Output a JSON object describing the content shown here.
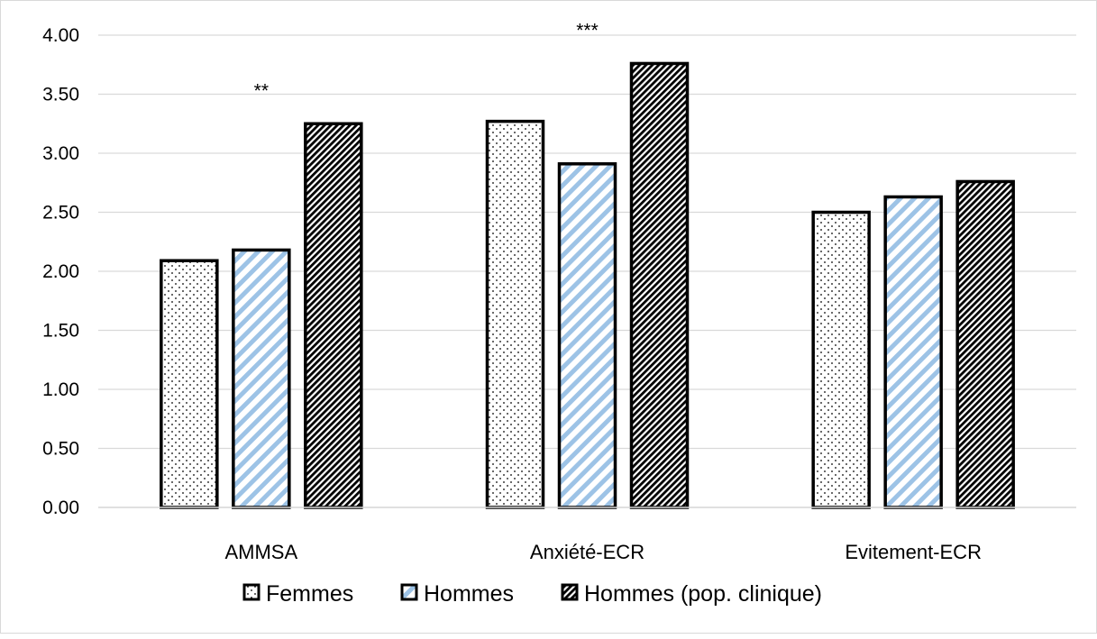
{
  "chart_data": {
    "type": "bar",
    "categories": [
      "AMMSA",
      "Anxiété-ECR",
      "Evitement-ECR"
    ],
    "series": [
      {
        "name": "Femmes",
        "values": [
          2.09,
          3.27,
          2.5
        ],
        "pattern": "dots",
        "fill_color": "#ffffff",
        "pattern_color": "#000000"
      },
      {
        "name": "Hommes",
        "values": [
          2.18,
          2.91,
          2.63
        ],
        "pattern": "light-diagonal-stripes",
        "fill_color": "#ffffff",
        "pattern_color": "#9dc3e6"
      },
      {
        "name": "Hommes (pop. clinique)",
        "values": [
          3.25,
          3.76,
          2.76
        ],
        "pattern": "dense-diagonal-stripes",
        "fill_color": "#ffffff",
        "pattern_color": "#000000"
      }
    ],
    "ylim": [
      0,
      4
    ],
    "yticks": [
      "0.00",
      "0.50",
      "1.00",
      "1.50",
      "2.00",
      "2.50",
      "3.00",
      "3.50",
      "4.00"
    ],
    "grid": true,
    "legend_position": "bottom",
    "annotations": [
      {
        "text": "**",
        "category": "AMMSA"
      },
      {
        "text": "***",
        "category": "Anxiété-ECR"
      }
    ],
    "colors": {
      "gridline": "#d9d9d9",
      "bar_outline": "#000000",
      "axis_line": "#d9d9d9"
    }
  }
}
